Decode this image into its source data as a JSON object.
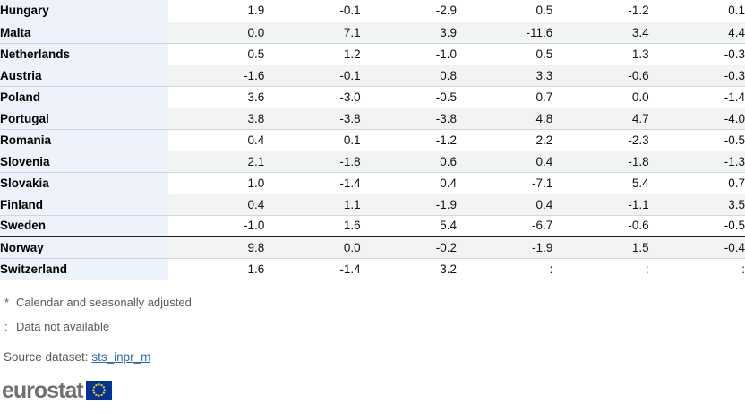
{
  "chart_data": {
    "type": "table",
    "row_header": "country",
    "rows": [
      {
        "country": "Hungary",
        "values": [
          "1.9",
          "-0.1",
          "-2.9",
          "0.5",
          "-1.2",
          "0.1"
        ]
      },
      {
        "country": "Malta",
        "values": [
          "0.0",
          "7.1",
          "3.9",
          "-11.6",
          "3.4",
          "4.4"
        ]
      },
      {
        "country": "Netherlands",
        "values": [
          "0.5",
          "1.2",
          "-1.0",
          "0.5",
          "1.3",
          "-0.3"
        ]
      },
      {
        "country": "Austria",
        "values": [
          "-1.6",
          "-0.1",
          "0.8",
          "3.3",
          "-0.6",
          "-0.3"
        ]
      },
      {
        "country": "Poland",
        "values": [
          "3.6",
          "-3.0",
          "-0.5",
          "0.7",
          "0.0",
          "-1.4"
        ]
      },
      {
        "country": "Portugal",
        "values": [
          "3.8",
          "-3.8",
          "-3.8",
          "4.8",
          "4.7",
          "-4.0"
        ]
      },
      {
        "country": "Romania",
        "values": [
          "0.4",
          "0.1",
          "-1.2",
          "2.2",
          "-2.3",
          "-0.5"
        ]
      },
      {
        "country": "Slovenia",
        "values": [
          "2.1",
          "-1.8",
          "0.6",
          "0.4",
          "-1.8",
          "-1.3"
        ]
      },
      {
        "country": "Slovakia",
        "values": [
          "1.0",
          "-1.4",
          "0.4",
          "-7.1",
          "5.4",
          "0.7"
        ]
      },
      {
        "country": "Finland",
        "values": [
          "0.4",
          "1.1",
          "-1.9",
          "0.4",
          "-1.1",
          "3.5"
        ]
      },
      {
        "country": "Sweden",
        "values": [
          "-1.0",
          "1.6",
          "5.4",
          "-6.7",
          "-0.6",
          "-0.5"
        ]
      },
      {
        "country": "Norway",
        "values": [
          "9.8",
          "0.0",
          "-0.2",
          "-1.9",
          "1.5",
          "-0.4"
        ],
        "group_start": true
      },
      {
        "country": "Switzerland",
        "values": [
          "1.6",
          "-1.4",
          "3.2",
          ":",
          ":",
          ":"
        ]
      }
    ],
    "missing_value_symbol": ":",
    "footnotes": [
      {
        "marker": "*",
        "text": "Calendar and seasonally adjusted"
      },
      {
        "marker": ":",
        "text": "Data not available"
      }
    ],
    "source": {
      "label": "Source dataset:",
      "dataset": "sts_inpr_m"
    }
  },
  "logo": {
    "text": "eurostat"
  },
  "colors": {
    "country_column_bg": "#eef2fa",
    "alt_row_bg": "#f2f4f4",
    "row_border": "#ccd7eb",
    "group_separator": "#222226",
    "country_text": "#000000",
    "value_text": "#111111",
    "footnote_text": "#595959",
    "link": "#2a6db5",
    "logo_text": "#6f6f6f",
    "flag_blue": "#003399",
    "flag_stars": "#ffcc00"
  }
}
